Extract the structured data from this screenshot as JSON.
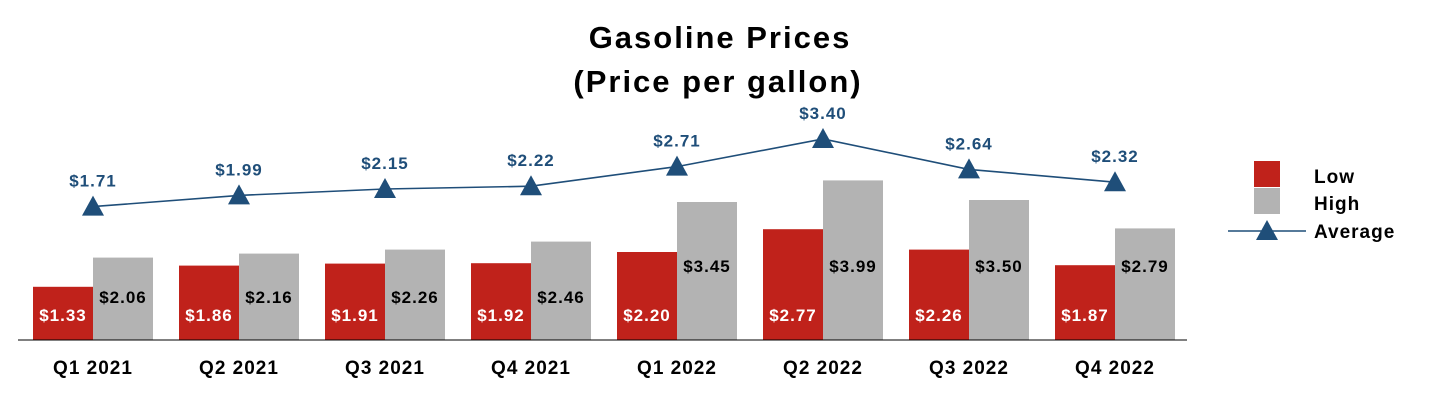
{
  "chart_data": {
    "type": "bar",
    "title": [
      "Gasoline Prices",
      "(Price per gallon)"
    ],
    "categories": [
      "Q1 2021",
      "Q2 2021",
      "Q3 2021",
      "Q4 2021",
      "Q1 2022",
      "Q2 2022",
      "Q3 2022",
      "Q4 2022"
    ],
    "series": [
      {
        "name": "Low",
        "type": "bar",
        "color": "#c0221b",
        "values": [
          1.33,
          1.86,
          1.91,
          1.92,
          2.2,
          2.77,
          2.26,
          1.87
        ],
        "labels": [
          "$1.33",
          "$1.86",
          "$1.91",
          "$1.92",
          "$2.20",
          "$2.77",
          "$2.26",
          "$1.87"
        ]
      },
      {
        "name": "High",
        "type": "bar",
        "color": "#b3b3b3",
        "values": [
          2.06,
          2.16,
          2.26,
          2.46,
          3.45,
          3.99,
          3.5,
          2.79
        ],
        "labels": [
          "$2.06",
          "$2.16",
          "$2.26",
          "$2.46",
          "$3.45",
          "$3.99",
          "$3.50",
          "$2.79"
        ]
      },
      {
        "name": "Average",
        "type": "line",
        "marker": "triangle",
        "color": "#1f4e79",
        "values": [
          1.71,
          1.99,
          2.15,
          2.22,
          2.71,
          3.4,
          2.64,
          2.32
        ],
        "labels": [
          "$1.71",
          "$1.99",
          "$2.15",
          "$2.22",
          "$2.71",
          "$3.40",
          "$2.64",
          "$2.32"
        ]
      }
    ],
    "ylim": [
      0,
      4
    ],
    "grid": false,
    "legend_position": "right"
  }
}
